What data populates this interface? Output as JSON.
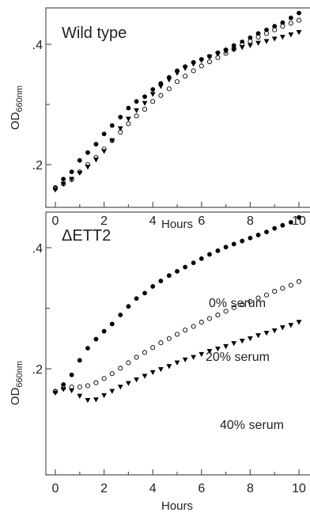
{
  "chart_data": [
    {
      "type": "scatter",
      "title": "Wild type",
      "xlabel": "Hours",
      "ylabel": "OD",
      "ylabel_sub": "660nm",
      "xlim": [
        -0.5,
        10.5
      ],
      "ylim": [
        0.14,
        0.5
      ],
      "xticks": [
        0,
        2,
        4,
        6,
        8,
        10
      ],
      "yticks": [
        0.2,
        0.4
      ],
      "ytick_labels": [
        ".2",
        ".4"
      ],
      "grid": false,
      "series": [
        {
          "marker": "filled-circle",
          "x": [
            0,
            0.33,
            0.67,
            1,
            1.33,
            1.67,
            2,
            2.33,
            2.67,
            3,
            3.33,
            3.67,
            4,
            4.33,
            4.67,
            5,
            5.33,
            5.67,
            6,
            6.33,
            6.67,
            7,
            7.33,
            7.67,
            8,
            8.33,
            8.67,
            9,
            9.33,
            9.67,
            10
          ],
          "y": [
            0.162,
            0.176,
            0.188,
            0.207,
            0.22,
            0.234,
            0.251,
            0.265,
            0.279,
            0.294,
            0.305,
            0.313,
            0.325,
            0.335,
            0.345,
            0.356,
            0.363,
            0.37,
            0.375,
            0.38,
            0.386,
            0.391,
            0.398,
            0.404,
            0.411,
            0.418,
            0.424,
            0.43,
            0.436,
            0.444,
            0.452
          ]
        },
        {
          "marker": "open-circle",
          "x": [
            0,
            0.33,
            0.67,
            1,
            1.33,
            1.67,
            2,
            2.33,
            2.67,
            3,
            3.33,
            3.67,
            4,
            4.33,
            4.67,
            5,
            5.33,
            5.67,
            6,
            6.33,
            6.67,
            7,
            7.33,
            7.67,
            8,
            8.33,
            8.67,
            9,
            9.33,
            9.67,
            10
          ],
          "y": [
            0.16,
            0.168,
            0.175,
            0.188,
            0.2,
            0.212,
            0.226,
            0.24,
            0.254,
            0.268,
            0.281,
            0.292,
            0.305,
            0.315,
            0.326,
            0.338,
            0.347,
            0.356,
            0.364,
            0.371,
            0.378,
            0.385,
            0.392,
            0.399,
            0.405,
            0.412,
            0.418,
            0.424,
            0.43,
            0.435,
            0.44
          ]
        },
        {
          "marker": "filled-triangle-down",
          "x": [
            0,
            0.33,
            0.67,
            1,
            1.33,
            1.67,
            2,
            2.33,
            2.67,
            3,
            3.33,
            3.67,
            4,
            4.33,
            4.67,
            5,
            5.33,
            5.67,
            6,
            6.33,
            6.67,
            7,
            7.33,
            7.67,
            8,
            8.33,
            8.67,
            9,
            9.33,
            9.67,
            10
          ],
          "y": [
            0.158,
            0.168,
            0.176,
            0.186,
            0.196,
            0.208,
            0.222,
            0.24,
            0.26,
            0.276,
            0.29,
            0.302,
            0.317,
            0.33,
            0.341,
            0.352,
            0.36,
            0.367,
            0.373,
            0.379,
            0.384,
            0.388,
            0.391,
            0.395,
            0.398,
            0.402,
            0.405,
            0.409,
            0.412,
            0.416,
            0.42
          ]
        }
      ]
    },
    {
      "type": "scatter",
      "title": "ΔETT2",
      "xlabel": "Hours",
      "ylabel": "OD",
      "ylabel_sub": "660nm",
      "xlim": [
        -0.5,
        10.5
      ],
      "ylim": [
        0.14,
        0.5
      ],
      "xticks": [
        0,
        2,
        4,
        6,
        8,
        10
      ],
      "yticks": [
        0.2,
        0.4
      ],
      "ytick_labels": [
        ".2",
        ".4"
      ],
      "grid": false,
      "series": [
        {
          "name": "0% serum",
          "marker": "filled-circle",
          "x": [
            0,
            0.33,
            0.67,
            1,
            1.33,
            1.67,
            2,
            2.33,
            2.67,
            3,
            3.33,
            3.67,
            4,
            4.33,
            4.67,
            5,
            5.33,
            5.67,
            6,
            6.33,
            6.67,
            7,
            7.33,
            7.67,
            8,
            8.33,
            8.67,
            9,
            9.33,
            9.67,
            10
          ],
          "y": [
            0.163,
            0.174,
            0.19,
            0.214,
            0.234,
            0.249,
            0.262,
            0.274,
            0.289,
            0.303,
            0.316,
            0.325,
            0.336,
            0.345,
            0.354,
            0.361,
            0.368,
            0.375,
            0.382,
            0.389,
            0.395,
            0.401,
            0.406,
            0.411,
            0.416,
            0.421,
            0.426,
            0.432,
            0.437,
            0.442,
            0.45
          ]
        },
        {
          "name": "20% serum",
          "marker": "open-circle",
          "x": [
            0,
            0.33,
            0.67,
            1,
            1.33,
            1.67,
            2,
            2.33,
            2.67,
            3,
            3.33,
            3.67,
            4,
            4.33,
            4.67,
            5,
            5.33,
            5.67,
            6,
            6.33,
            6.67,
            7,
            7.33,
            7.67,
            8,
            8.33,
            8.67,
            9,
            9.33,
            9.67,
            10
          ],
          "y": [
            0.162,
            0.168,
            0.17,
            0.17,
            0.172,
            0.177,
            0.184,
            0.192,
            0.201,
            0.21,
            0.219,
            0.227,
            0.235,
            0.243,
            0.25,
            0.257,
            0.264,
            0.27,
            0.277,
            0.283,
            0.289,
            0.295,
            0.301,
            0.306,
            0.311,
            0.317,
            0.322,
            0.328,
            0.333,
            0.338,
            0.344
          ]
        },
        {
          "name": "40% serum",
          "marker": "filled-triangle-down",
          "x": [
            0,
            0.33,
            0.67,
            1,
            1.33,
            1.67,
            2,
            2.33,
            2.67,
            3,
            3.33,
            3.67,
            4,
            4.33,
            4.67,
            5,
            5.33,
            5.67,
            6,
            6.33,
            6.67,
            7,
            7.33,
            7.67,
            8,
            8.33,
            8.67,
            9,
            9.33,
            9.67,
            10
          ],
          "y": [
            0.16,
            0.166,
            0.164,
            0.155,
            0.148,
            0.149,
            0.156,
            0.163,
            0.17,
            0.176,
            0.182,
            0.188,
            0.194,
            0.199,
            0.204,
            0.21,
            0.215,
            0.219,
            0.224,
            0.229,
            0.233,
            0.237,
            0.242,
            0.246,
            0.25,
            0.255,
            0.259,
            0.263,
            0.268,
            0.272,
            0.277
          ]
        }
      ]
    }
  ]
}
